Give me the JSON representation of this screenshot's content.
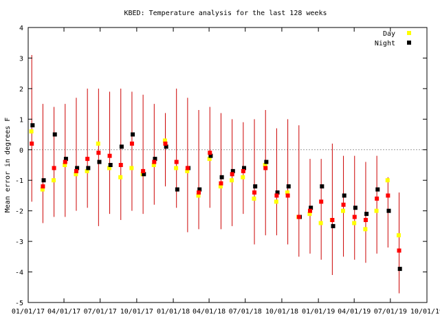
{
  "chart_data": {
    "type": "scatter",
    "title": "KBED: Temperature analysis for the last 128 weeks",
    "ylabel": "Mean error in degrees F",
    "xlabel": "",
    "ylim": [
      -5,
      4
    ],
    "yticks": [
      -5,
      -4,
      -3,
      -2,
      -1,
      0,
      1,
      2,
      3,
      4
    ],
    "xlim": [
      "2017-01-01",
      "2019-10-01"
    ],
    "xticks": [
      {
        "date": "2017-01-01",
        "label": "01/01/17"
      },
      {
        "date": "2017-04-01",
        "label": "04/01/17"
      },
      {
        "date": "2017-07-01",
        "label": "07/01/17"
      },
      {
        "date": "2017-10-01",
        "label": "10/01/17"
      },
      {
        "date": "2018-01-01",
        "label": "01/01/18"
      },
      {
        "date": "2018-04-01",
        "label": "04/01/18"
      },
      {
        "date": "2018-07-01",
        "label": "07/01/18"
      },
      {
        "date": "2018-10-01",
        "label": "10/01/18"
      },
      {
        "date": "2019-01-01",
        "label": "01/01/19"
      },
      {
        "date": "2019-04-01",
        "label": "04/01/19"
      },
      {
        "date": "2019-07-01",
        "label": "07/01/19"
      },
      {
        "date": "2019-10-01",
        "label": "10/01/19"
      }
    ],
    "grid": false,
    "zero_line": true,
    "legend_position": "top-right",
    "colors": {
      "day": "#ffff00",
      "night": "#000000",
      "error_bar": "#cc0000",
      "mid": "#ff0000",
      "zero_line": "#999999"
    },
    "series": [
      {
        "name": "Day",
        "x": [
          "2017-01-09",
          "2017-02-06",
          "2017-03-06",
          "2017-04-03",
          "2017-05-01",
          "2017-05-29",
          "2017-06-26",
          "2017-07-24",
          "2017-08-21",
          "2017-09-18",
          "2017-10-16",
          "2017-11-13",
          "2017-12-11",
          "2018-01-08",
          "2018-02-05",
          "2018-03-05",
          "2018-04-02",
          "2018-04-30",
          "2018-05-28",
          "2018-06-25",
          "2018-07-23",
          "2018-08-20",
          "2018-09-17",
          "2018-10-15",
          "2018-11-12",
          "2018-12-10",
          "2019-01-07",
          "2019-02-04",
          "2019-03-04",
          "2019-04-01",
          "2019-04-29",
          "2019-05-27",
          "2019-06-24",
          "2019-07-22"
        ],
        "y": [
          0.6,
          -1.3,
          -1.0,
          -0.5,
          -0.8,
          -0.7,
          0.2,
          -0.6,
          -0.9,
          -0.6,
          -0.8,
          -0.5,
          0.3,
          -0.6,
          -0.7,
          -1.5,
          -0.3,
          -1.2,
          -1.0,
          -0.9,
          -1.6,
          -0.5,
          -1.7,
          -1.4,
          -2.2,
          -2.1,
          -2.4,
          -2.3,
          -2.0,
          -2.4,
          -2.6,
          -2.0,
          -1.0,
          -2.8
        ]
      },
      {
        "name": "Night",
        "x": [
          "2017-01-12",
          "2017-02-09",
          "2017-03-09",
          "2017-04-06",
          "2017-05-04",
          "2017-06-01",
          "2017-06-29",
          "2017-07-27",
          "2017-08-24",
          "2017-09-21",
          "2017-10-19",
          "2017-11-16",
          "2017-12-14",
          "2018-01-11",
          "2018-02-08",
          "2018-03-08",
          "2018-04-05",
          "2018-05-03",
          "2018-05-31",
          "2018-06-28",
          "2018-07-26",
          "2018-08-23",
          "2018-09-20",
          "2018-10-18",
          "2018-11-15",
          "2018-12-13",
          "2019-01-10",
          "2019-02-07",
          "2019-03-07",
          "2019-04-04",
          "2019-05-02",
          "2019-05-30",
          "2019-06-27",
          "2019-07-25"
        ],
        "y": [
          0.8,
          -1.0,
          0.5,
          -0.3,
          -0.6,
          -0.6,
          -0.4,
          -0.5,
          0.1,
          0.5,
          -0.8,
          -0.3,
          0.1,
          -1.3,
          -0.6,
          -1.3,
          -0.2,
          -0.9,
          -0.7,
          -0.6,
          -1.2,
          -0.4,
          -1.4,
          -1.2,
          -2.2,
          -1.9,
          -1.2,
          -2.5,
          -1.5,
          -1.9,
          -2.1,
          -1.3,
          -2.0,
          -3.9
        ]
      },
      {
        "name": "",
        "x": [
          "2017-01-10",
          "2017-02-07",
          "2017-03-07",
          "2017-04-04",
          "2017-05-02",
          "2017-05-30",
          "2017-06-27",
          "2017-07-25",
          "2017-08-22",
          "2017-09-19",
          "2017-10-17",
          "2017-11-14",
          "2017-12-12",
          "2018-01-09",
          "2018-02-06",
          "2018-03-06",
          "2018-04-03",
          "2018-05-01",
          "2018-05-29",
          "2018-06-26",
          "2018-07-24",
          "2018-08-21",
          "2018-09-18",
          "2018-10-16",
          "2018-11-13",
          "2018-12-11",
          "2019-01-08",
          "2019-02-05",
          "2019-03-05",
          "2019-04-02",
          "2019-04-30",
          "2019-05-28",
          "2019-06-25",
          "2019-07-23"
        ],
        "y": [
          0.2,
          -1.2,
          -0.6,
          -0.4,
          -0.7,
          -0.3,
          -0.1,
          -0.2,
          -0.5,
          0.2,
          -0.7,
          -0.4,
          0.2,
          -0.4,
          -0.6,
          -1.4,
          -0.1,
          -1.1,
          -0.8,
          -0.7,
          -1.4,
          -0.6,
          -1.5,
          -1.5,
          -2.2,
          -2.0,
          -1.7,
          -2.3,
          -1.8,
          -2.2,
          -2.3,
          -1.6,
          -1.5,
          -3.3
        ]
      }
    ],
    "error_bars": {
      "x": [
        "2017-01-10",
        "2017-02-07",
        "2017-03-07",
        "2017-04-04",
        "2017-05-02",
        "2017-05-30",
        "2017-06-27",
        "2017-07-25",
        "2017-08-22",
        "2017-09-19",
        "2017-10-17",
        "2017-11-14",
        "2017-12-12",
        "2018-01-09",
        "2018-02-06",
        "2018-03-06",
        "2018-04-03",
        "2018-05-01",
        "2018-05-29",
        "2018-06-26",
        "2018-07-24",
        "2018-08-21",
        "2018-09-18",
        "2018-10-16",
        "2018-11-13",
        "2018-12-11",
        "2019-01-08",
        "2019-02-05",
        "2019-03-05",
        "2019-04-02",
        "2019-04-30",
        "2019-05-28",
        "2019-06-25",
        "2019-07-23"
      ],
      "low": [
        -1.7,
        -2.4,
        -2.2,
        -2.2,
        -2.0,
        -1.9,
        -2.5,
        -2.1,
        -2.3,
        -2.0,
        -2.1,
        -1.8,
        -1.2,
        -1.9,
        -2.7,
        -2.6,
        -1.9,
        -2.6,
        -2.5,
        -2.1,
        -3.1,
        -2.8,
        -2.8,
        -3.1,
        -3.5,
        -3.4,
        -3.6,
        -4.1,
        -3.5,
        -3.6,
        -3.7,
        -3.4,
        -3.2,
        -4.7
      ],
      "high": [
        3.1,
        1.5,
        1.4,
        1.5,
        1.7,
        2.0,
        2.0,
        1.9,
        2.0,
        1.9,
        1.8,
        1.5,
        1.2,
        2.0,
        1.7,
        1.3,
        1.4,
        1.2,
        1.0,
        0.9,
        1.0,
        1.3,
        0.7,
        1.0,
        0.8,
        -0.3,
        -0.3,
        0.2,
        -0.2,
        -0.2,
        -0.4,
        -0.2,
        -0.9,
        -1.4
      ]
    }
  }
}
